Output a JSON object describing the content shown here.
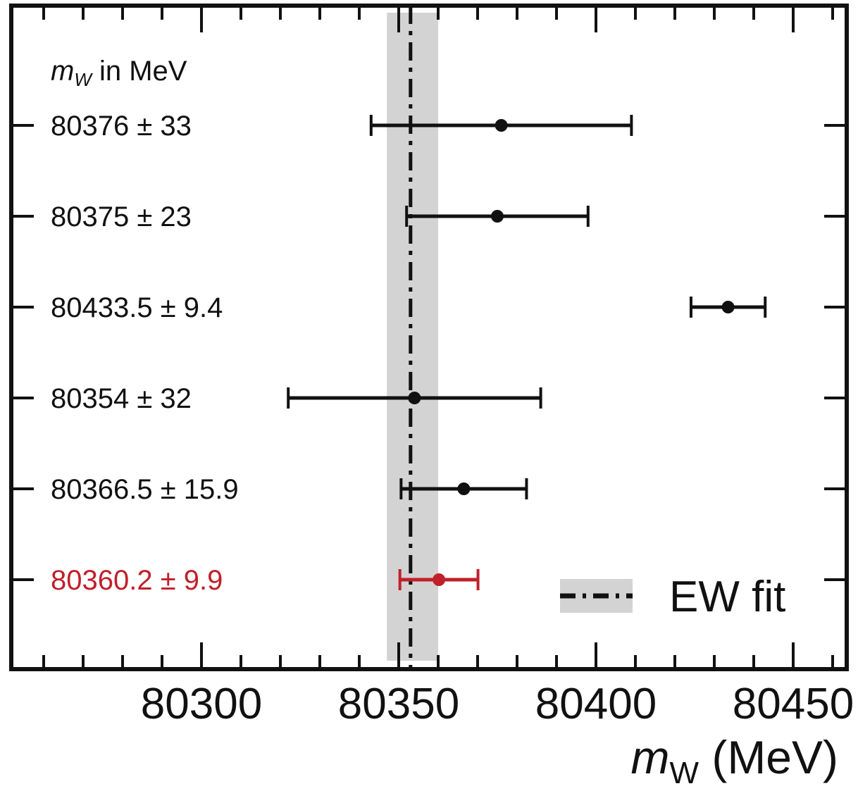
{
  "chart_data": {
    "type": "scatter",
    "subtype": "errorbar",
    "xlabel_var": "m",
    "xlabel_sub": "W",
    "xlabel_unit": " (MeV)",
    "xlim": [
      80255,
      80467
    ],
    "xticks": [
      80300,
      80350,
      80400,
      80450
    ],
    "xtick_labels": [
      "80300",
      "80350",
      "80400",
      "80450"
    ],
    "heading": {
      "var": "m",
      "sub": "W",
      "rest": " in MeV"
    },
    "measurements": [
      {
        "label": "80376 ± 33",
        "value": 80376,
        "error": 33,
        "color": "#111111"
      },
      {
        "label": "80375 ± 23",
        "value": 80375,
        "error": 23,
        "color": "#111111"
      },
      {
        "label": "80433.5 ± 9.4",
        "value": 80433.5,
        "error": 9.4,
        "color": "#111111"
      },
      {
        "label": "80354 ± 32",
        "value": 80354,
        "error": 32,
        "color": "#111111"
      },
      {
        "label": "80366.5 ± 15.9",
        "value": 80366.5,
        "error": 15.9,
        "color": "#111111"
      },
      {
        "label": "80360.2 ± 9.9",
        "value": 80360.2,
        "error": 9.9,
        "color": "#c0202a"
      }
    ],
    "ew_fit": {
      "value": 80353,
      "band": [
        80347,
        80360
      ],
      "band_color": "#d3d3d3"
    },
    "legend": {
      "label": "EW fit",
      "position": "bottom-right"
    },
    "grid": false
  }
}
